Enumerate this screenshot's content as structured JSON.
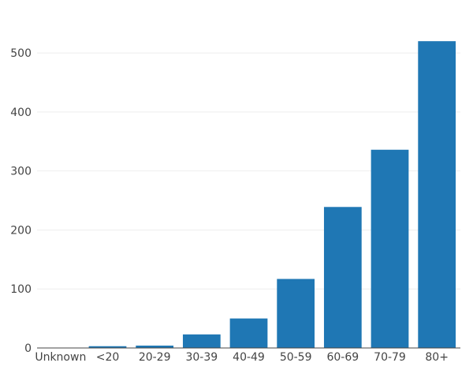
{
  "chart_data": {
    "type": "bar",
    "title": "",
    "xlabel": "",
    "ylabel": "",
    "categories": [
      "Unknown",
      "<20",
      "20-29",
      "30-39",
      "40-49",
      "50-59",
      "60-69",
      "70-79",
      "80+"
    ],
    "values": [
      0,
      3,
      4,
      23,
      50,
      117,
      239,
      336,
      520
    ],
    "ylim": [
      0,
      547
    ],
    "yticks": [
      0,
      100,
      200,
      300,
      400,
      500
    ],
    "grid": true,
    "legend": "none",
    "bar_color": "#1f77b4",
    "grid_color": "#eeeeee",
    "axis_color": "#444444"
  }
}
